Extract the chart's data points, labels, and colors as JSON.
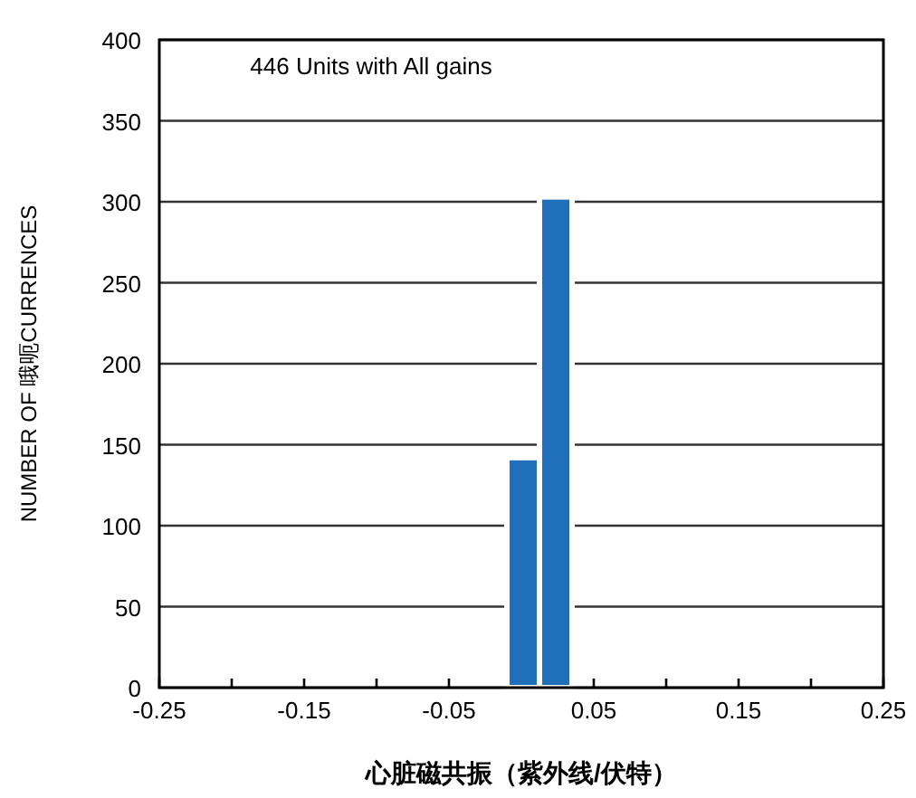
{
  "chart_data": {
    "type": "histogram",
    "xlabel": "心脏磁共振（紫外线/伏特）",
    "ylabel": "NUMBER OF 哦呃CURRENCES",
    "annotations": [
      "446 Units with All gains"
    ],
    "bins": [
      -0.01,
      0.0125,
      0.035
    ],
    "values": [
      142,
      303
    ],
    "color": "#1f6fba",
    "xlim": [
      -0.25,
      0.25
    ],
    "xticks": [
      -0.25,
      {
        "value": -0.2,
        "label": null
      },
      -0.15,
      {
        "value": -0.1,
        "label": null
      },
      -0.05,
      {
        "value": 0,
        "label": null
      },
      0.05,
      {
        "value": 0.1,
        "label": null
      },
      0.15,
      {
        "value": 0.2,
        "label": null
      },
      0.25
    ],
    "ylim": [
      0,
      400
    ],
    "yticks": [
      0,
      50,
      100,
      150,
      200,
      250,
      300,
      350,
      400
    ],
    "grid": "y"
  }
}
